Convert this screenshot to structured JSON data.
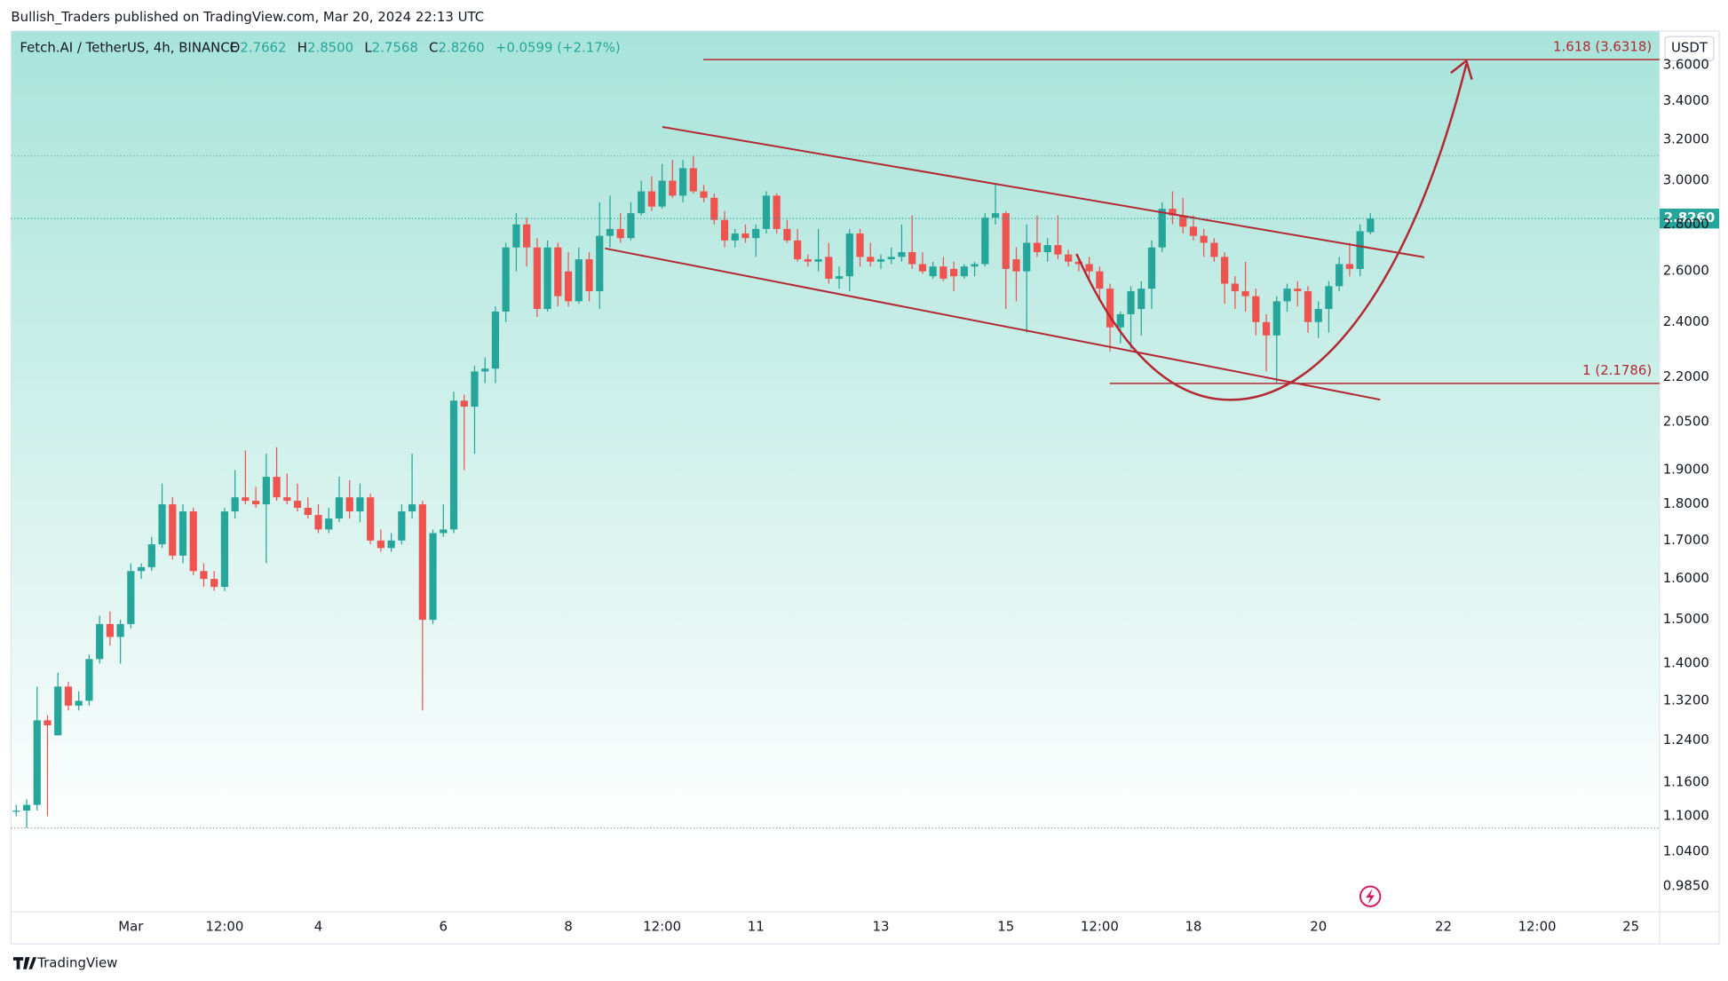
{
  "header": {
    "published": "Bullish_Traders published on TradingView.com, Mar 20, 2024 22:13 UTC"
  },
  "footer": {
    "brand": "TradingView"
  },
  "chart_data": {
    "type": "candlestick",
    "legend": {
      "symbol": "Fetch.AI / TetherUS, 4h, BINANCE",
      "open_label": "O",
      "open": "2.7662",
      "high_label": "H",
      "high": "2.8500",
      "low_label": "L",
      "low": "2.7568",
      "close_label": "C",
      "close": "2.8260",
      "change": "+0.0599 (+2.17%)"
    },
    "currency": "USDT",
    "price_label": "2.8260",
    "up_color": "#26a69a",
    "down_color": "#ef5350",
    "log_scale": true,
    "fib_levels": [
      {
        "price": 3.6318,
        "label": "1.618 (3.6318)"
      },
      {
        "price": 2.1786,
        "label": "1 (2.1786)"
      }
    ],
    "xlim": [
      -46,
      587
    ],
    "xticks": [
      {
        "value": 0,
        "label": "Mar"
      },
      {
        "value": 36,
        "label": "12:00"
      },
      {
        "value": 72,
        "label": "4"
      },
      {
        "value": 120,
        "label": "6"
      },
      {
        "value": 168,
        "label": "8"
      },
      {
        "value": 204,
        "label": "12:00"
      },
      {
        "value": 240,
        "label": "11"
      },
      {
        "value": 288,
        "label": "13"
      },
      {
        "value": 336,
        "label": "15"
      },
      {
        "value": 372,
        "label": "12:00"
      },
      {
        "value": 408,
        "label": "18"
      },
      {
        "value": 456,
        "label": "20"
      },
      {
        "value": 504,
        "label": "22"
      },
      {
        "value": 540,
        "label": "12:00"
      },
      {
        "value": 576,
        "label": "25"
      }
    ],
    "ylim": [
      0.946,
      3.8
    ],
    "yticks": [
      {
        "value": 0.985,
        "label": "0.9850"
      },
      {
        "value": 1.04,
        "label": "1.0400"
      },
      {
        "value": 1.1,
        "label": "1.1000"
      },
      {
        "value": 1.16,
        "label": "1.1600"
      },
      {
        "value": 1.24,
        "label": "1.2400"
      },
      {
        "value": 1.32,
        "label": "1.3200"
      },
      {
        "value": 1.4,
        "label": "1.4000"
      },
      {
        "value": 1.5,
        "label": "1.5000"
      },
      {
        "value": 1.6,
        "label": "1.6000"
      },
      {
        "value": 1.7,
        "label": "1.7000"
      },
      {
        "value": 1.8,
        "label": "1.8000"
      },
      {
        "value": 1.9,
        "label": "1.9000"
      },
      {
        "value": 2.05,
        "label": "2.0500"
      },
      {
        "value": 2.2,
        "label": "2.2000"
      },
      {
        "value": 2.4,
        "label": "2.4000"
      },
      {
        "value": 2.6,
        "label": "2.6000"
      },
      {
        "value": 2.8,
        "label": "2.8000"
      },
      {
        "value": 3.0,
        "label": "3.0000"
      },
      {
        "value": 3.2,
        "label": "3.2000"
      },
      {
        "value": 3.4,
        "label": "3.4000"
      },
      {
        "value": 3.6,
        "label": "3.6000"
      }
    ],
    "x": [
      -44,
      -40,
      -36,
      -32,
      -28,
      -24,
      -20,
      -16,
      -12,
      -8,
      -4,
      0,
      4,
      8,
      12,
      16,
      20,
      24,
      28,
      32,
      36,
      40,
      44,
      48,
      52,
      56,
      60,
      64,
      68,
      72,
      76,
      80,
      84,
      88,
      92,
      96,
      100,
      104,
      108,
      112,
      116,
      120,
      124,
      128,
      132,
      136,
      140,
      144,
      148,
      152,
      156,
      160,
      164,
      168,
      172,
      176,
      180,
      184,
      188,
      192,
      196,
      200,
      204,
      208,
      212,
      216,
      220,
      224,
      228,
      232,
      236,
      240,
      244,
      248,
      252,
      256,
      260,
      264,
      268,
      272,
      276,
      280,
      284,
      288,
      292,
      296,
      300,
      304,
      308,
      312,
      316,
      320,
      324,
      328,
      332,
      336,
      340,
      344,
      348,
      352,
      356,
      360,
      364,
      368,
      372,
      376,
      380,
      384,
      388,
      392,
      396,
      400,
      404,
      408,
      412,
      416,
      420,
      424,
      428,
      432,
      436,
      440,
      444,
      448,
      452,
      456,
      460,
      464,
      468,
      472,
      476
    ],
    "open": [
      1.11,
      1.11,
      1.12,
      1.28,
      1.25,
      1.35,
      1.31,
      1.32,
      1.41,
      1.49,
      1.46,
      1.49,
      1.62,
      1.63,
      1.69,
      1.8,
      1.66,
      1.78,
      1.62,
      1.6,
      1.58,
      1.78,
      1.82,
      1.81,
      1.8,
      1.88,
      1.82,
      1.81,
      1.79,
      1.77,
      1.73,
      1.76,
      1.82,
      1.78,
      1.82,
      1.7,
      1.68,
      1.7,
      1.78,
      1.8,
      1.5,
      1.72,
      1.73,
      2.12,
      2.1,
      2.22,
      2.23,
      2.44,
      2.7,
      2.8,
      2.7,
      2.45,
      2.7,
      2.6,
      2.48,
      2.65,
      2.52,
      2.75,
      2.78,
      2.74,
      2.85,
      2.95,
      2.88,
      3.0,
      2.93,
      3.06,
      2.95,
      2.92,
      2.82,
      2.73,
      2.76,
      2.74,
      2.78,
      2.93,
      2.78,
      2.73,
      2.65,
      2.64,
      2.66,
      2.57,
      2.58,
      2.76,
      2.66,
      2.64,
      2.65,
      2.66,
      2.68,
      2.63,
      2.58,
      2.62,
      2.61,
      2.58,
      2.62,
      2.63,
      2.83,
      2.85,
      2.65,
      2.6,
      2.72,
      2.68,
      2.71,
      2.67,
      2.64,
      2.63,
      2.6,
      2.53,
      2.38,
      2.43,
      2.45,
      2.53,
      2.7,
      2.87,
      2.84,
      2.79,
      2.75,
      2.72,
      2.66,
      2.55,
      2.52,
      2.5,
      2.4,
      2.35,
      2.48,
      2.53,
      2.52,
      2.4,
      2.45,
      2.54,
      2.63,
      2.61,
      2.7662
    ],
    "high": [
      1.12,
      1.13,
      1.35,
      1.29,
      1.38,
      1.36,
      1.34,
      1.42,
      1.51,
      1.52,
      1.5,
      1.64,
      1.64,
      1.71,
      1.86,
      1.82,
      1.8,
      1.79,
      1.64,
      1.62,
      1.79,
      1.9,
      1.96,
      1.85,
      1.95,
      1.97,
      1.89,
      1.86,
      1.82,
      1.8,
      1.79,
      1.88,
      1.87,
      1.86,
      1.83,
      1.73,
      1.72,
      1.8,
      1.95,
      1.81,
      1.73,
      1.8,
      2.15,
      2.14,
      2.24,
      2.27,
      2.46,
      2.72,
      2.85,
      2.83,
      2.74,
      2.73,
      2.72,
      2.68,
      2.7,
      2.68,
      2.9,
      2.93,
      2.85,
      2.9,
      3.0,
      3.02,
      3.08,
      3.1,
      3.1,
      3.12,
      2.98,
      2.94,
      2.86,
      2.78,
      2.8,
      2.8,
      2.95,
      2.94,
      2.82,
      2.78,
      2.67,
      2.78,
      2.72,
      2.62,
      2.78,
      2.78,
      2.72,
      2.67,
      2.7,
      2.8,
      2.84,
      2.68,
      2.64,
      2.66,
      2.64,
      2.63,
      2.64,
      2.85,
      2.99,
      2.86,
      2.7,
      2.8,
      2.84,
      2.74,
      2.84,
      2.69,
      2.66,
      2.66,
      2.62,
      2.55,
      2.44,
      2.54,
      2.56,
      2.73,
      2.9,
      2.95,
      2.92,
      2.84,
      2.78,
      2.74,
      2.68,
      2.58,
      2.64,
      2.53,
      2.43,
      2.5,
      2.55,
      2.56,
      2.54,
      2.48,
      2.56,
      2.66,
      2.72,
      2.8,
      2.85
    ],
    "low": [
      1.1,
      1.08,
      1.11,
      1.1,
      1.25,
      1.3,
      1.3,
      1.31,
      1.4,
      1.44,
      1.4,
      1.48,
      1.6,
      1.62,
      1.68,
      1.65,
      1.64,
      1.61,
      1.58,
      1.57,
      1.57,
      1.76,
      1.8,
      1.79,
      1.64,
      1.81,
      1.8,
      1.78,
      1.76,
      1.72,
      1.72,
      1.75,
      1.76,
      1.75,
      1.69,
      1.67,
      1.67,
      1.69,
      1.76,
      1.3,
      1.49,
      1.71,
      1.72,
      1.9,
      1.95,
      2.18,
      2.18,
      2.4,
      2.6,
      2.62,
      2.42,
      2.44,
      2.46,
      2.46,
      2.47,
      2.48,
      2.45,
      2.7,
      2.72,
      2.73,
      2.84,
      2.86,
      2.87,
      2.92,
      2.9,
      2.94,
      2.9,
      2.8,
      2.7,
      2.7,
      2.72,
      2.66,
      2.76,
      2.76,
      2.72,
      2.64,
      2.62,
      2.6,
      2.55,
      2.53,
      2.52,
      2.62,
      2.62,
      2.61,
      2.63,
      2.64,
      2.61,
      2.59,
      2.57,
      2.56,
      2.52,
      2.57,
      2.58,
      2.62,
      2.8,
      2.45,
      2.48,
      2.36,
      2.66,
      2.64,
      2.65,
      2.62,
      2.6,
      2.56,
      2.48,
      2.29,
      2.32,
      2.3,
      2.35,
      2.45,
      2.68,
      2.8,
      2.76,
      2.73,
      2.66,
      2.64,
      2.47,
      2.45,
      2.44,
      2.35,
      2.22,
      2.18,
      2.44,
      2.46,
      2.36,
      2.34,
      2.36,
      2.52,
      2.58,
      2.58,
      2.7568
    ],
    "close": [
      1.11,
      1.12,
      1.28,
      1.27,
      1.35,
      1.31,
      1.32,
      1.41,
      1.49,
      1.46,
      1.49,
      1.62,
      1.63,
      1.69,
      1.8,
      1.66,
      1.78,
      1.62,
      1.6,
      1.58,
      1.78,
      1.82,
      1.81,
      1.8,
      1.88,
      1.82,
      1.81,
      1.79,
      1.77,
      1.73,
      1.76,
      1.82,
      1.78,
      1.82,
      1.7,
      1.68,
      1.7,
      1.78,
      1.8,
      1.5,
      1.72,
      1.73,
      2.12,
      2.1,
      2.22,
      2.23,
      2.44,
      2.7,
      2.8,
      2.7,
      2.45,
      2.7,
      2.5,
      2.48,
      2.65,
      2.52,
      2.75,
      2.78,
      2.74,
      2.85,
      2.95,
      2.88,
      3.0,
      2.93,
      3.06,
      2.95,
      2.92,
      2.82,
      2.73,
      2.76,
      2.74,
      2.78,
      2.93,
      2.78,
      2.73,
      2.65,
      2.64,
      2.65,
      2.57,
      2.58,
      2.76,
      2.66,
      2.64,
      2.65,
      2.66,
      2.68,
      2.63,
      2.6,
      2.62,
      2.57,
      2.58,
      2.62,
      2.63,
      2.83,
      2.85,
      2.61,
      2.6,
      2.72,
      2.68,
      2.71,
      2.67,
      2.64,
      2.63,
      2.6,
      2.53,
      2.38,
      2.43,
      2.52,
      2.53,
      2.7,
      2.87,
      2.84,
      2.79,
      2.75,
      2.72,
      2.66,
      2.55,
      2.52,
      2.5,
      2.4,
      2.35,
      2.48,
      2.53,
      2.52,
      2.4,
      2.45,
      2.54,
      2.63,
      2.61,
      2.77,
      2.826
    ]
  }
}
